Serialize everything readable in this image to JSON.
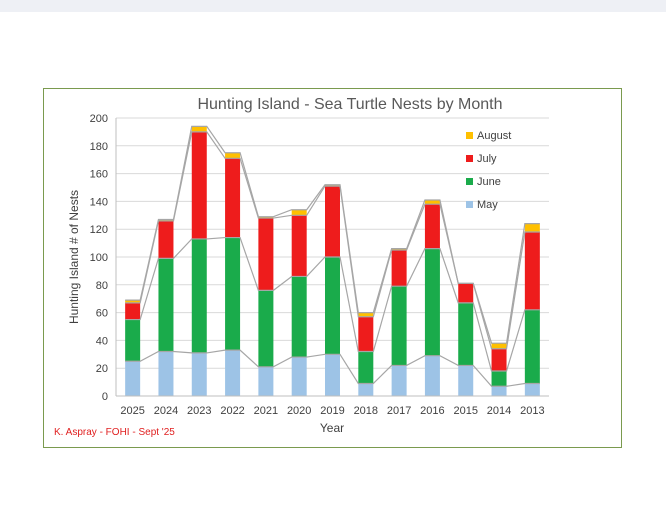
{
  "chart_data": {
    "type": "bar",
    "stacked": true,
    "title": "Hunting Island - Sea Turtle Nests by Month",
    "xlabel": "Year",
    "ylabel": "Hunting Island # of Nests",
    "ylim": [
      0,
      200
    ],
    "yticks": [
      0,
      20,
      40,
      60,
      80,
      100,
      120,
      140,
      160,
      180,
      200
    ],
    "grid": true,
    "legend_position": "top-right",
    "categories": [
      "2025",
      "2024",
      "2023",
      "2022",
      "2021",
      "2020",
      "2019",
      "2018",
      "2017",
      "2016",
      "2015",
      "2014",
      "2013"
    ],
    "series": [
      {
        "name": "May",
        "color": "#9dc3e6",
        "values": [
          25,
          32,
          31,
          33,
          21,
          28,
          30,
          9,
          22,
          29,
          22,
          7,
          9
        ]
      },
      {
        "name": "June",
        "color": "#1aab4b",
        "values": [
          30,
          67,
          82,
          81,
          55,
          58,
          70,
          23,
          57,
          77,
          45,
          11,
          53
        ]
      },
      {
        "name": "July",
        "color": "#ee1c1c",
        "values": [
          12,
          27,
          77,
          57,
          52,
          44,
          51,
          25,
          26,
          32,
          14,
          16,
          56
        ]
      },
      {
        "name": "August",
        "color": "#ffc000",
        "values": [
          2,
          1,
          4,
          4,
          1,
          4,
          1,
          3,
          1,
          3,
          0,
          4,
          6
        ]
      }
    ]
  },
  "credit": "K. Aspray - FOHI -  Sept '25"
}
